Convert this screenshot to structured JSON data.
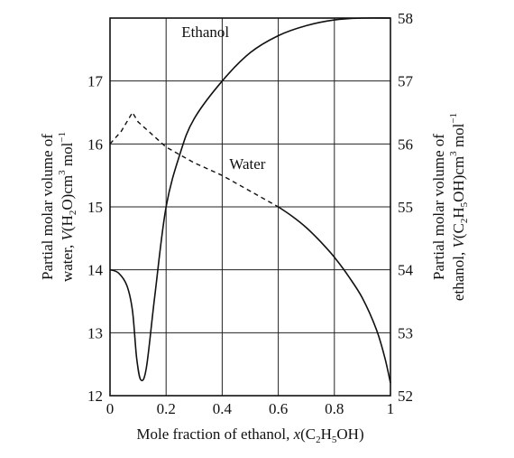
{
  "chart_data": {
    "type": "line",
    "title": "",
    "xlabel": {
      "text": "Mole fraction of ethanol, ",
      "italic": "x",
      "p1": "(C",
      "s1": "2",
      "p2": "H",
      "s2": "5",
      "p3": "OH)"
    },
    "ylabel_left": {
      "line1": "Partial molar volume of",
      "line2_a": "water, ",
      "line2_v": "V",
      "line2_b": "(H",
      "line2_s": "2",
      "line2_c": "O)cm",
      "line2_sup1": "3",
      "line2_d": " mol",
      "line2_sup2": "−1"
    },
    "ylabel_right": {
      "line1": "Partial molar volume of",
      "line2_a": "ethanol, ",
      "line2_v": "V",
      "line2_b": "(C",
      "line2_s1": "2",
      "line2_c": "H",
      "line2_s2": "5",
      "line2_d": "OH)cm",
      "line2_sup1": "3",
      "line2_e": " mol",
      "line2_sup2": "−1"
    },
    "xlim": [
      0,
      1
    ],
    "ylim_left": [
      12,
      18
    ],
    "ylim_right": [
      52,
      58
    ],
    "x_ticks": [
      "0",
      "0.2",
      "0.4",
      "0.6",
      "0.8",
      "1"
    ],
    "y_left_ticks": [
      "12",
      "13",
      "14",
      "15",
      "16",
      "17"
    ],
    "y_right_ticks": [
      "52",
      "53",
      "54",
      "55",
      "56",
      "57",
      "58"
    ],
    "grid": true,
    "series": [
      {
        "name": "Ethanol",
        "axis": "right",
        "style": "solid",
        "x": [
          0.0,
          0.03,
          0.06,
          0.08,
          0.095,
          0.11,
          0.13,
          0.16,
          0.2,
          0.25,
          0.3,
          0.4,
          0.5,
          0.6,
          0.7,
          0.8,
          0.9,
          1.0
        ],
        "y": [
          54.0,
          53.95,
          53.75,
          53.35,
          52.6,
          52.25,
          52.45,
          53.6,
          55.0,
          55.85,
          56.4,
          57.0,
          57.45,
          57.72,
          57.88,
          57.97,
          58.0,
          58.0
        ]
      },
      {
        "name": "Water",
        "axis": "left",
        "style": "dashed",
        "x": [
          0.0,
          0.04,
          0.08,
          0.1,
          0.2,
          0.3,
          0.4,
          0.5,
          0.6
        ],
        "y": [
          16.0,
          16.2,
          16.5,
          16.35,
          15.95,
          15.7,
          15.5,
          15.25,
          15.0
        ]
      },
      {
        "name": "Water",
        "axis": "left",
        "style": "solid",
        "x": [
          0.6,
          0.65,
          0.7,
          0.75,
          0.8,
          0.85,
          0.9,
          0.95,
          0.98,
          1.0
        ],
        "y": [
          15.0,
          14.85,
          14.67,
          14.45,
          14.2,
          13.9,
          13.55,
          13.05,
          12.6,
          12.2
        ]
      }
    ],
    "annotations": [
      {
        "text": "Ethanol",
        "x": 0.34,
        "y_left": 17.7
      },
      {
        "text": "Water",
        "x": 0.49,
        "y_left": 15.6
      }
    ]
  }
}
